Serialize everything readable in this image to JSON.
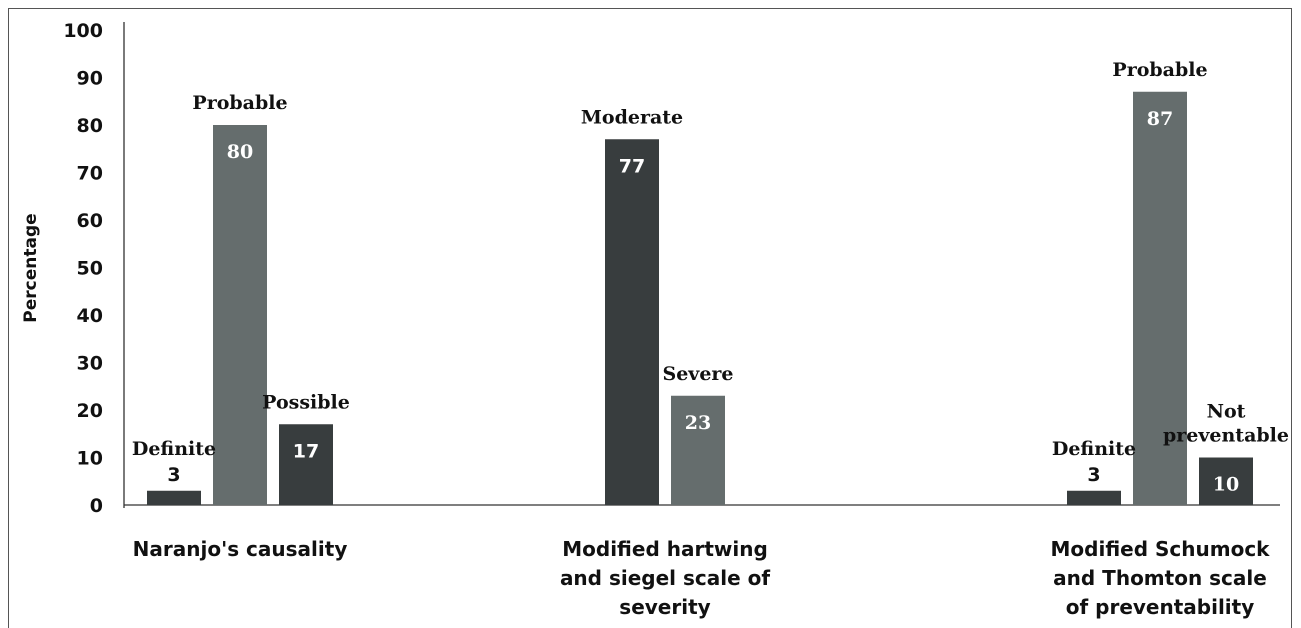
{
  "chart_data": {
    "type": "bar",
    "ylabel": "Percentage",
    "ylim": [
      0,
      100
    ],
    "yticks": [
      0,
      10,
      20,
      30,
      40,
      50,
      60,
      70,
      80,
      90,
      100
    ],
    "grid": false,
    "groups": [
      {
        "label_lines": [
          "Naranjo's causality"
        ],
        "bars": [
          {
            "category_lines": [
              "Definite"
            ],
            "value": 3,
            "color": "#383d3e"
          },
          {
            "category_lines": [
              "Probable"
            ],
            "value": 80,
            "color": "#656d6d"
          },
          {
            "category_lines": [
              "Possible"
            ],
            "value": 17,
            "color": "#383d3e"
          }
        ]
      },
      {
        "label_lines": [
          "Modified hartwing",
          "and siegel scale of",
          "severity"
        ],
        "bars": [
          {
            "category_lines": [
              "Moderate"
            ],
            "value": 77,
            "color": "#383d3e"
          },
          {
            "category_lines": [
              "Severe"
            ],
            "value": 23,
            "color": "#656d6d"
          }
        ]
      },
      {
        "label_lines": [
          "Modified Schumock",
          "and Thomton scale",
          "of preventability"
        ],
        "bars": [
          {
            "category_lines": [
              "Definite"
            ],
            "value": 3,
            "color": "#383d3e"
          },
          {
            "category_lines": [
              "Probable"
            ],
            "value": 87,
            "color": "#656d6d"
          },
          {
            "category_lines": [
              "Not",
              "preventable"
            ],
            "value": 10,
            "color": "#383d3e"
          }
        ]
      }
    ]
  }
}
